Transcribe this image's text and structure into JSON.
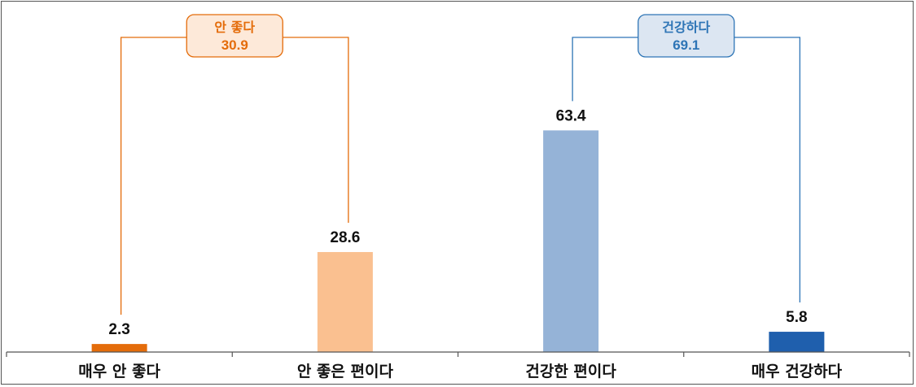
{
  "chart_data": {
    "type": "bar",
    "categories": [
      "매우 안 좋다",
      "안 좋은 편이다",
      "건강한 편이다",
      "매우 건강하다"
    ],
    "values": [
      2.3,
      28.6,
      63.4,
      5.8
    ],
    "ylim": [
      0,
      100
    ],
    "grid": false,
    "bar_colors": [
      "#e46c0a",
      "#fac090",
      "#95b3d7",
      "#1f5fad"
    ],
    "value_labels": [
      "2.3",
      "28.6",
      "63.4",
      "5.8"
    ],
    "groups": [
      {
        "label": "안 좋다",
        "value": "30.9",
        "color": "#e46c0a",
        "fill": "#fde9d9",
        "from": 0,
        "to": 1
      },
      {
        "label": "건강하다",
        "value": "69.1",
        "color": "#2e75b6",
        "fill": "#dce6f2",
        "from": 2,
        "to": 3
      }
    ]
  }
}
